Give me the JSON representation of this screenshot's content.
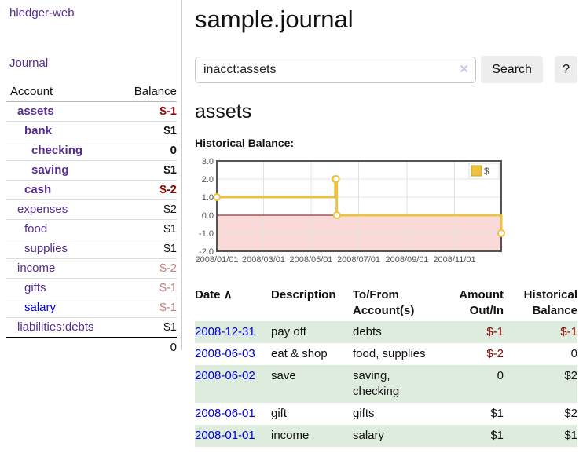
{
  "app": {
    "title": "hledger-web"
  },
  "sidebar": {
    "journal_link": "Journal",
    "table": {
      "headers": {
        "account": "Account",
        "balance": "Balance"
      },
      "rows": [
        {
          "account": "assets",
          "balance": "$-1",
          "depth": 0,
          "bold": true,
          "negative": "strong",
          "link_color": "purple"
        },
        {
          "account": "bank",
          "balance": "$1",
          "depth": 1,
          "bold": true,
          "negative": "none",
          "link_color": "purple"
        },
        {
          "account": "checking",
          "balance": "0",
          "depth": 2,
          "bold": true,
          "negative": "none",
          "link_color": "purple"
        },
        {
          "account": "saving",
          "balance": "$1",
          "depth": 2,
          "bold": true,
          "negative": "none",
          "link_color": "purple"
        },
        {
          "account": "cash",
          "balance": "$-2",
          "depth": 1,
          "bold": true,
          "negative": "strong",
          "link_color": "purple"
        },
        {
          "account": "expenses",
          "balance": "$2",
          "depth": 0,
          "bold": false,
          "negative": "none",
          "link_color": "purple"
        },
        {
          "account": "food",
          "balance": "$1",
          "depth": 1,
          "bold": false,
          "negative": "none",
          "link_color": "purple"
        },
        {
          "account": "supplies",
          "balance": "$1",
          "depth": 1,
          "bold": false,
          "negative": "none",
          "link_color": "purple"
        },
        {
          "account": "income",
          "balance": "$-2",
          "depth": 0,
          "bold": false,
          "negative": "soft",
          "link_color": "purple"
        },
        {
          "account": "gifts",
          "balance": "$-1",
          "depth": 1,
          "bold": false,
          "negative": "soft",
          "link_color": "purple"
        },
        {
          "account": "salary",
          "balance": "$-1",
          "depth": 1,
          "bold": false,
          "negative": "soft",
          "link_color": "blue"
        },
        {
          "account": "liabilities:debts",
          "balance": "$1",
          "depth": 0,
          "bold": false,
          "negative": "none",
          "link_color": "purple"
        }
      ],
      "total": "0"
    }
  },
  "main": {
    "title": "sample.journal",
    "search": {
      "value": "inacct:assets",
      "clear_icon": "✕",
      "search_label": "Search",
      "help_label": "?"
    },
    "account_heading": "assets",
    "chart_label": "Historical Balance:"
  },
  "chart_data": {
    "type": "line",
    "step": true,
    "title": "Historical Balance:",
    "series": [
      {
        "name": "$",
        "color": "#EDC240",
        "points": [
          [
            "2008-01-01",
            1
          ],
          [
            "2008-06-01",
            2
          ],
          [
            "2008-06-02",
            2
          ],
          [
            "2008-06-03",
            0
          ],
          [
            "2008-12-31",
            -1
          ]
        ]
      }
    ],
    "x_ticks": [
      "2008/01/01",
      "2008/03/01",
      "2008/05/01",
      "2008/07/01",
      "2008/09/01",
      "2008/11/01"
    ],
    "y_ticks": [
      3.0,
      2.0,
      1.0,
      0.0,
      -1.0,
      -2.0
    ],
    "xlim": [
      "2008-01-01",
      "2008-12-31"
    ],
    "ylim": [
      -2,
      3
    ],
    "grid": true,
    "legend": {
      "label": "$",
      "position": "top-right"
    },
    "colors": {
      "negative_region": "#FAD9D9",
      "zero_line": "#8B0000",
      "border": "#555555",
      "gridline": "#e3e3e3",
      "tick_text": "#545454",
      "swatch_border": "#C7A028"
    }
  },
  "register": {
    "sort_indicator": "∧",
    "headers": {
      "date": "Date",
      "description": "Description",
      "accounts": "To/From Account(s)",
      "amount": "Amount Out/In",
      "balance": "Historical Balance"
    },
    "rows": [
      {
        "date": "2008-12-31",
        "description": "pay off",
        "accounts": "debts",
        "amount": "$-1",
        "balance": "$-1",
        "amount_negative": true,
        "balance_negative": true
      },
      {
        "date": "2008-06-03",
        "description": "eat & shop",
        "accounts": "food, supplies",
        "amount": "$-2",
        "balance": "0",
        "amount_negative": true,
        "balance_negative": false
      },
      {
        "date": "2008-06-02",
        "description": "save",
        "accounts": "saving, checking",
        "amount": "0",
        "balance": "$2",
        "amount_negative": false,
        "balance_negative": false
      },
      {
        "date": "2008-06-01",
        "description": "gift",
        "accounts": "gifts",
        "amount": "$1",
        "balance": "$2",
        "amount_negative": false,
        "balance_negative": false
      },
      {
        "date": "2008-01-01",
        "description": "income",
        "accounts": "salary",
        "amount": "$1",
        "balance": "$1",
        "amount_negative": false,
        "balance_negative": false
      }
    ]
  }
}
